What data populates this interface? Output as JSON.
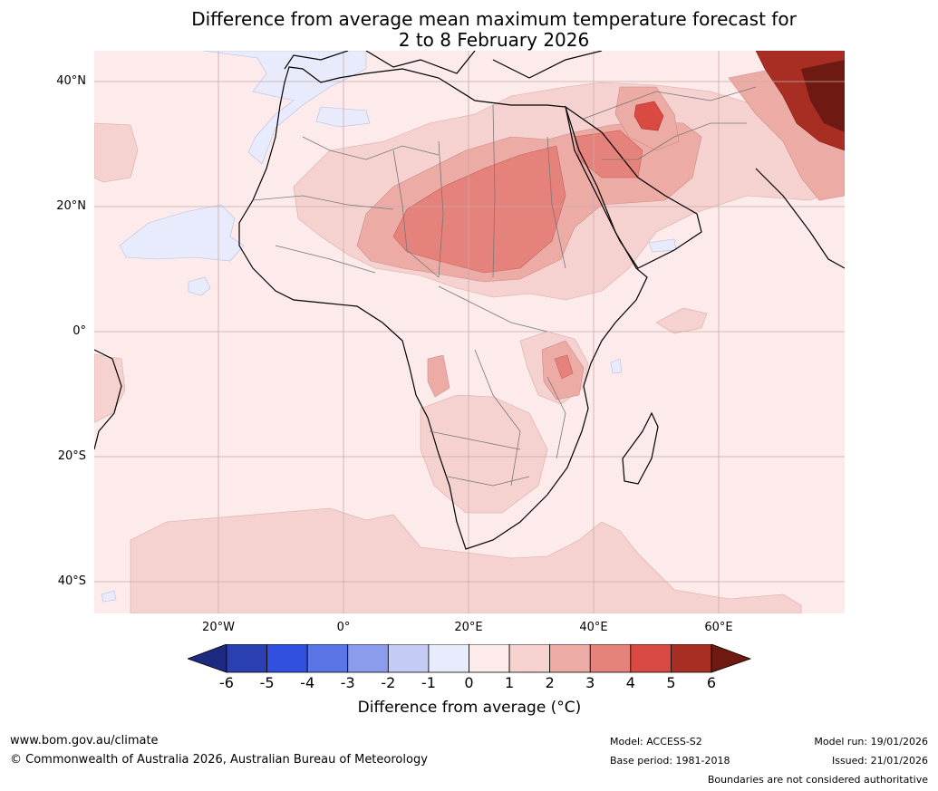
{
  "title": {
    "line1": "Difference from average mean maximum temperature forecast for",
    "line2": "2 to 8 February 2026"
  },
  "map": {
    "lat_labels": [
      "40°N",
      "20°N",
      "0°",
      "20°S",
      "40°S"
    ],
    "lon_labels": [
      "20°W",
      "0°",
      "20°E",
      "40°E",
      "60°E"
    ],
    "regions": [
      {
        "name": "Sahara and Sudan",
        "category": "3 to 4"
      },
      {
        "name": "Arabian Peninsula north",
        "category": "3 to 4"
      },
      {
        "name": "Iran / Caspian",
        "category": "4 to 5"
      },
      {
        "name": "Central Asia north-east corner",
        "category": "5 to 6+"
      },
      {
        "name": "East Africa (Tanzania)",
        "category": "3 to 4"
      },
      {
        "name": "North Atlantic off Morocco",
        "category": "-1 to 0"
      },
      {
        "name": "Atlantic off West Africa",
        "category": "-1 to 0"
      }
    ]
  },
  "colorbar": {
    "ticks": [
      "-6",
      "-5",
      "-4",
      "-3",
      "-2",
      "-1",
      "0",
      "1",
      "2",
      "3",
      "4",
      "5",
      "6"
    ],
    "colors": [
      "#1c2b80",
      "#2a3fb0",
      "#3250e0",
      "#5b75e6",
      "#8b9ced",
      "#c4cbf4",
      "#e8ebfc",
      "#fcebea",
      "#f5d2cf",
      "#edaba6",
      "#e5827b",
      "#d84a42",
      "#a82e24",
      "#6e1a12"
    ],
    "label": "Difference from average (°C)"
  },
  "footer": {
    "url": "www.bom.gov.au/climate",
    "copyright": "© Commonwealth of Australia 2026, Australian Bureau of Meteorology",
    "model": "Model: ACCESS-S2",
    "base_period": "Base period: 1981-2018",
    "model_run": "Model run: 19/01/2026",
    "issued": "Issued: 21/01/2026",
    "disclaimer": "Boundaries are not considered authoritative"
  }
}
